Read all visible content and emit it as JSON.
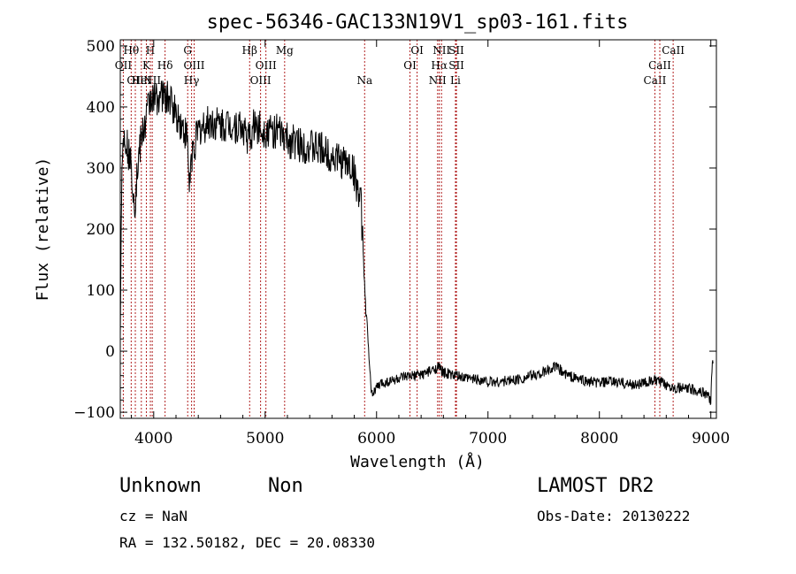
{
  "chart_data": {
    "type": "line",
    "title": "spec-56346-GAC133N19V1_sp03-161.fits",
    "xlabel": "Wavelength (Å)",
    "ylabel": "Flux (relative)",
    "xlim": [
      3700,
      9050
    ],
    "ylim": [
      -110,
      510
    ],
    "xticks": [
      4000,
      5000,
      6000,
      7000,
      8000,
      9000
    ],
    "yticks": [
      -100,
      0,
      100,
      200,
      300,
      400,
      500
    ],
    "xtick_labels": [
      "4000",
      "5000",
      "6000",
      "7000",
      "8000",
      "9000"
    ],
    "ytick_labels": [
      "−100",
      "0",
      "100",
      "200",
      "300",
      "400",
      "500"
    ],
    "spectrum_anchor_points": [
      [
        3700,
        20
      ],
      [
        3705,
        130
      ],
      [
        3715,
        320
      ],
      [
        3740,
        360
      ],
      [
        3770,
        330
      ],
      [
        3800,
        300
      ],
      [
        3830,
        240
      ],
      [
        3860,
        310
      ],
      [
        3890,
        350
      ],
      [
        3920,
        370
      ],
      [
        3950,
        400
      ],
      [
        3980,
        420
      ],
      [
        4000,
        410
      ],
      [
        4050,
        420
      ],
      [
        4100,
        415
      ],
      [
        4150,
        410
      ],
      [
        4200,
        390
      ],
      [
        4250,
        370
      ],
      [
        4300,
        350
      ],
      [
        4320,
        270
      ],
      [
        4340,
        320
      ],
      [
        4400,
        360
      ],
      [
        4500,
        375
      ],
      [
        4600,
        370
      ],
      [
        4700,
        372
      ],
      [
        4800,
        365
      ],
      [
        4860,
        345
      ],
      [
        4900,
        370
      ],
      [
        5000,
        362
      ],
      [
        5100,
        360
      ],
      [
        5200,
        345
      ],
      [
        5300,
        340
      ],
      [
        5400,
        335
      ],
      [
        5500,
        330
      ],
      [
        5600,
        320
      ],
      [
        5700,
        310
      ],
      [
        5780,
        302
      ],
      [
        5820,
        275
      ],
      [
        5860,
        240
      ],
      [
        5880,
        165
      ],
      [
        5900,
        75
      ],
      [
        5920,
        30
      ],
      [
        5940,
        -40
      ],
      [
        5960,
        -70
      ],
      [
        6000,
        -60
      ],
      [
        6050,
        -52
      ],
      [
        6100,
        -50
      ],
      [
        6200,
        -45
      ],
      [
        6300,
        -42
      ],
      [
        6400,
        -38
      ],
      [
        6500,
        -32
      ],
      [
        6550,
        -25
      ],
      [
        6600,
        -35
      ],
      [
        6700,
        -40
      ],
      [
        6800,
        -45
      ],
      [
        6900,
        -45
      ],
      [
        7000,
        -50
      ],
      [
        7100,
        -50
      ],
      [
        7200,
        -48
      ],
      [
        7300,
        -45
      ],
      [
        7400,
        -40
      ],
      [
        7500,
        -35
      ],
      [
        7600,
        -25
      ],
      [
        7700,
        -38
      ],
      [
        7800,
        -45
      ],
      [
        7900,
        -50
      ],
      [
        8000,
        -52
      ],
      [
        8100,
        -50
      ],
      [
        8200,
        -52
      ],
      [
        8300,
        -55
      ],
      [
        8400,
        -52
      ],
      [
        8500,
        -48
      ],
      [
        8600,
        -55
      ],
      [
        8700,
        -60
      ],
      [
        8800,
        -62
      ],
      [
        8900,
        -65
      ],
      [
        8960,
        -70
      ],
      [
        9000,
        -80
      ],
      [
        9010,
        -30
      ],
      [
        9020,
        -20
      ]
    ],
    "lines": [
      {
        "wave": 3727,
        "label": "OII",
        "row": 2
      },
      {
        "wave": 3798,
        "label": "Hθ",
        "row": 1
      },
      {
        "wave": 3835,
        "label": "OII",
        "row": 3
      },
      {
        "wave": 3889,
        "label": "HeI",
        "row": 3
      },
      {
        "wave": 3934,
        "label": "K",
        "row": 2
      },
      {
        "wave": 3970,
        "label": "H",
        "row": 1
      },
      {
        "wave": 3987,
        "label": "NII",
        "row": 3
      },
      {
        "wave": 4102,
        "label": "Hδ",
        "row": 2
      },
      {
        "wave": 4305,
        "label": "G",
        "row": 1
      },
      {
        "wave": 4340,
        "label": "Hγ",
        "row": 3
      },
      {
        "wave": 4363,
        "label": "OIII",
        "row": 2
      },
      {
        "wave": 4861,
        "label": "Hβ",
        "row": 1
      },
      {
        "wave": 4959,
        "label": "OIII",
        "row": 3
      },
      {
        "wave": 5007,
        "label": "OIII",
        "row": 2
      },
      {
        "wave": 5175,
        "label": "Mg",
        "row": 1
      },
      {
        "wave": 5893,
        "label": "Na",
        "row": 3
      },
      {
        "wave": 6300,
        "label": "OI",
        "row": 2
      },
      {
        "wave": 6364,
        "label": "OI",
        "row": 1
      },
      {
        "wave": 6548,
        "label": "NII",
        "row": 3
      },
      {
        "wave": 6563,
        "label": "Hα",
        "row": 2
      },
      {
        "wave": 6583,
        "label": "NII",
        "row": 1
      },
      {
        "wave": 6716,
        "label": "SII",
        "row": 1
      },
      {
        "wave": 6717,
        "label": "SII",
        "row": 2
      },
      {
        "wave": 6708,
        "label": "Li",
        "row": 3
      },
      {
        "wave": 8498,
        "label": "CaII",
        "row": 3
      },
      {
        "wave": 8542,
        "label": "CaII",
        "row": 2
      },
      {
        "wave": 8662,
        "label": "CaII",
        "row": 1
      }
    ],
    "colors": {
      "spectrum": "#000000",
      "lines": "#b22222",
      "axes": "#000000"
    }
  },
  "footer": {
    "object_class": "Unknown",
    "subclass": "Non",
    "survey": "LAMOST DR2",
    "cz": "cz = NaN",
    "obs_date": "Obs-Date: 20130222",
    "coords": "RA = 132.50182, DEC =  20.08330"
  }
}
